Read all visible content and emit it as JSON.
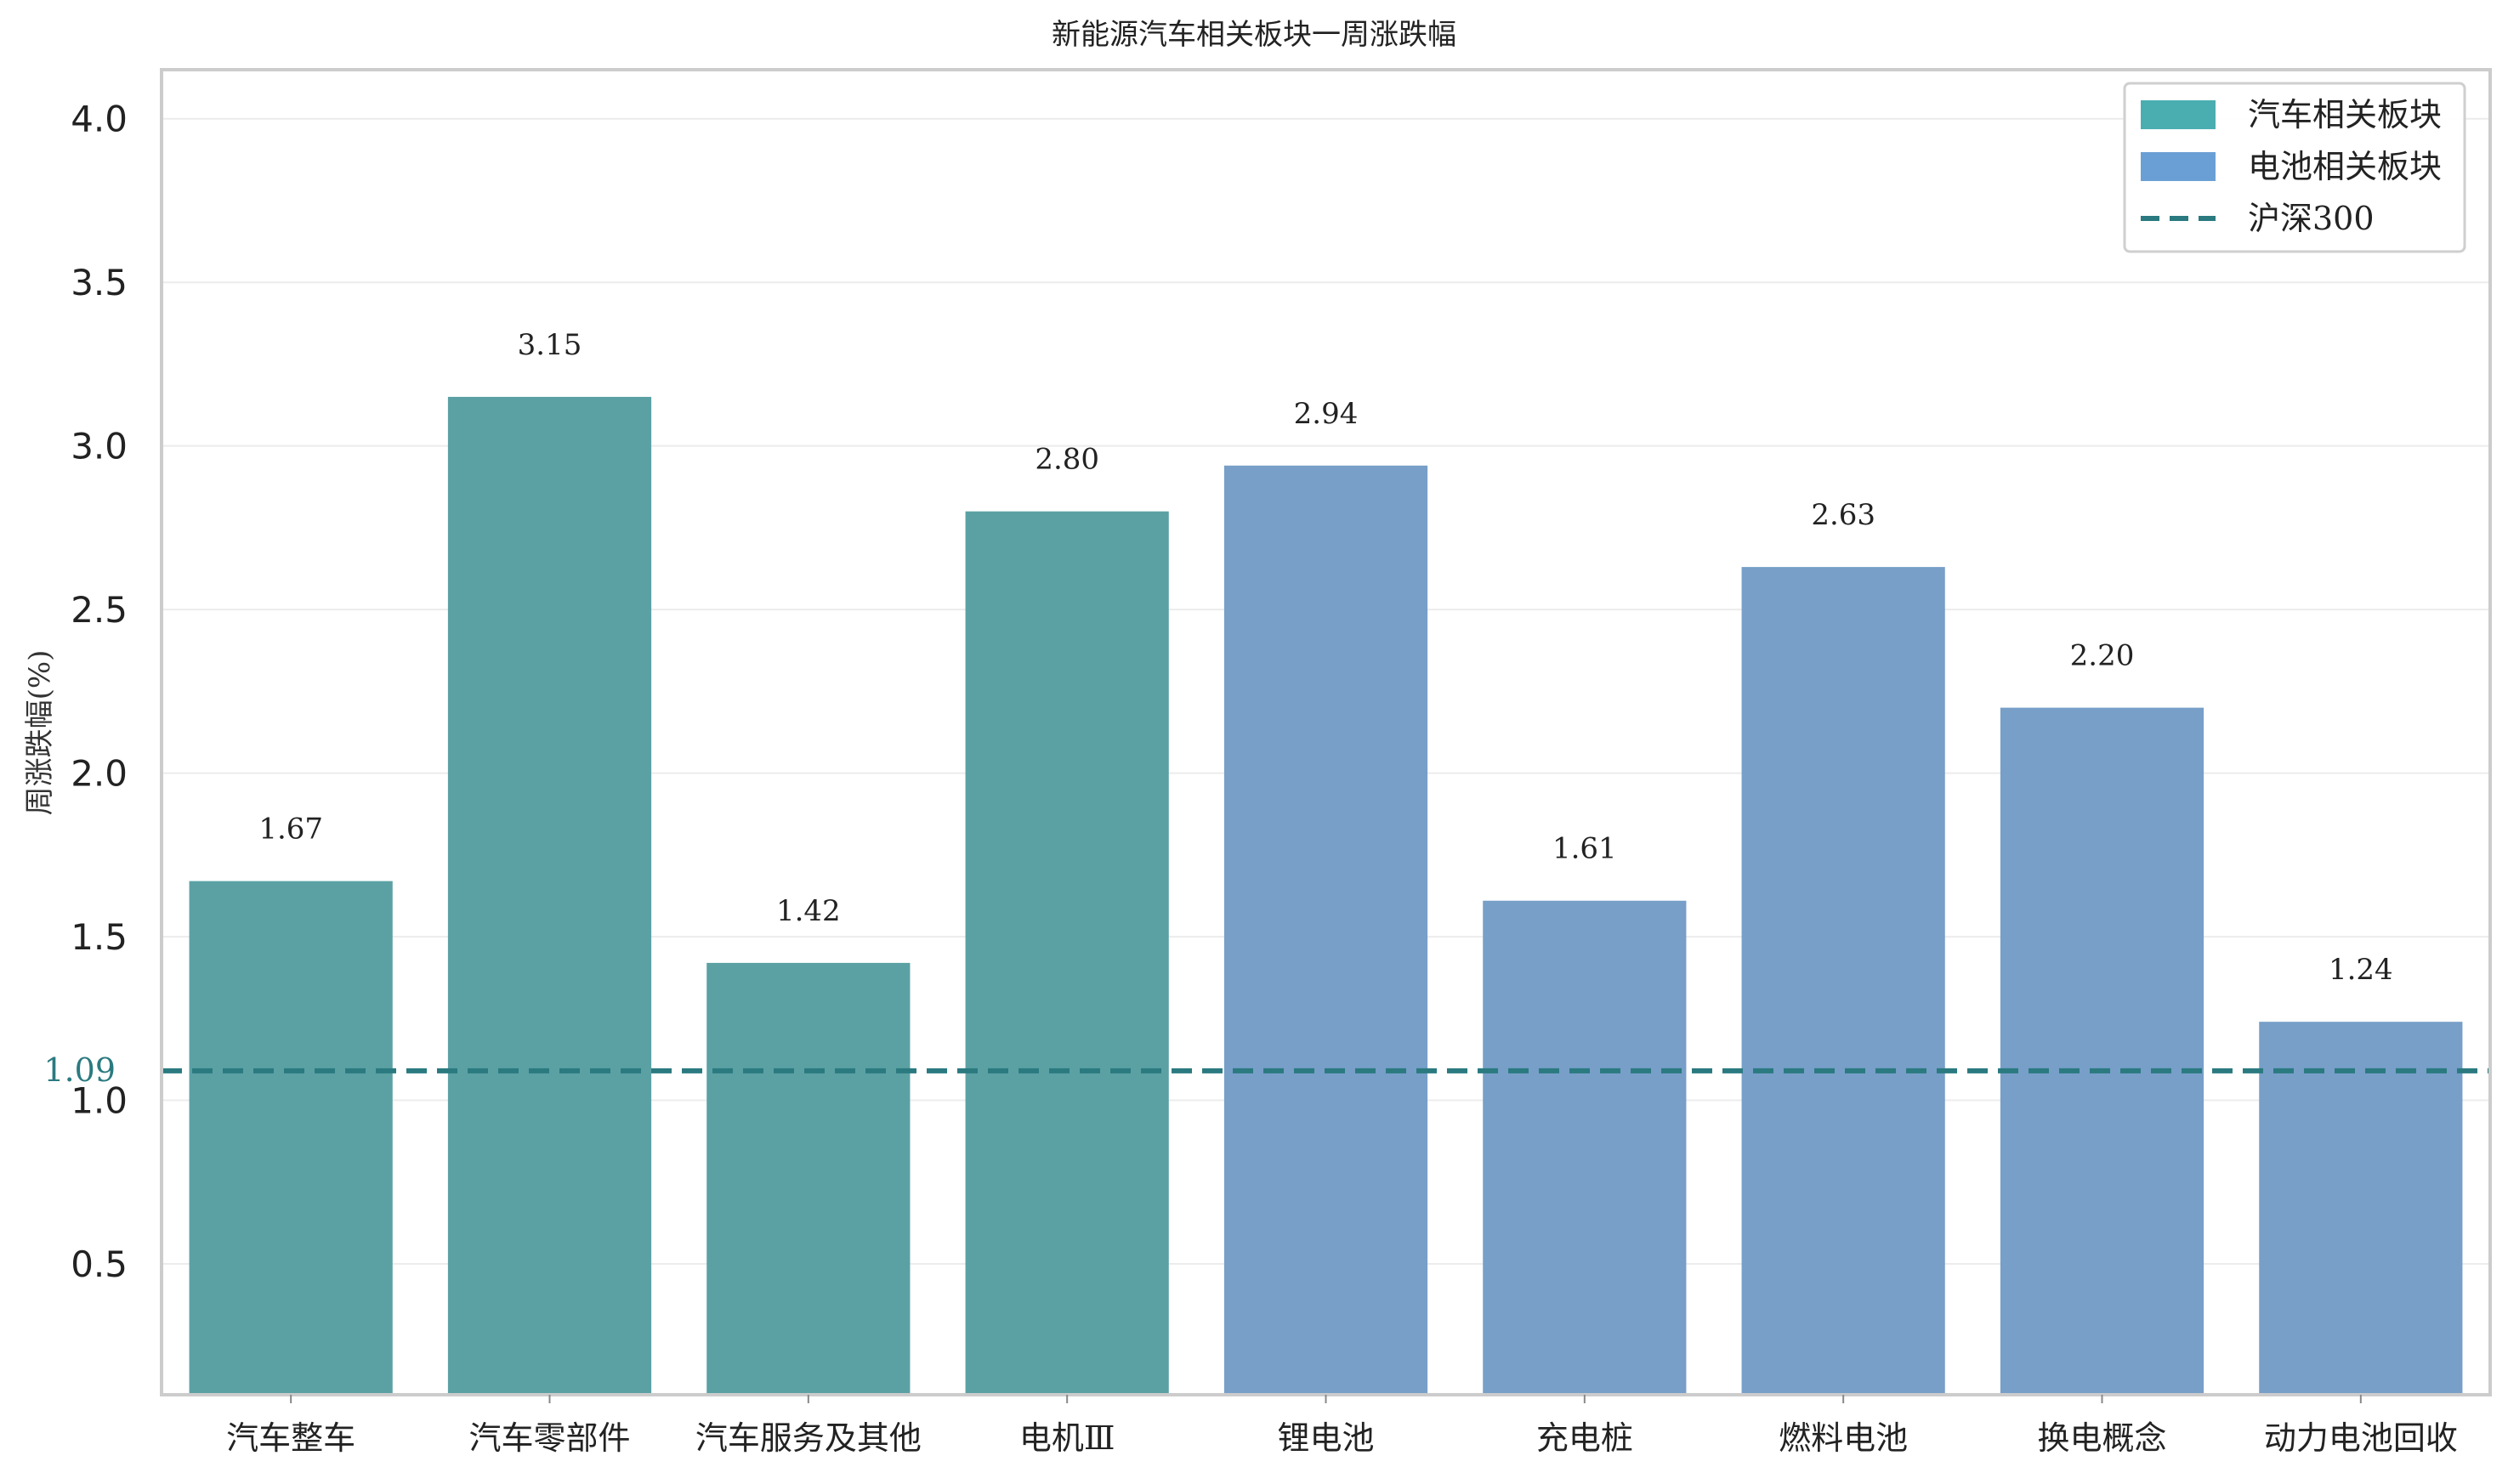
{
  "chart_data": {
    "type": "bar",
    "title": "新能源汽车相关板块一周涨跌幅",
    "xlabel": "",
    "ylabel": "周涨跌幅(%)",
    "ylim": [
      0.1,
      4.15
    ],
    "yticks": [
      0.5,
      1.0,
      1.5,
      2.0,
      2.5,
      3.0,
      3.5,
      4.0
    ],
    "grid": true,
    "legend_position": "top-right",
    "categories": [
      "汽车整车",
      "汽车零部件",
      "汽车服务及其他",
      "电机Ⅲ",
      "锂电池",
      "充电桩",
      "燃料电池",
      "换电概念",
      "动力电池回收"
    ],
    "values": [
      1.67,
      3.15,
      1.42,
      2.8,
      2.94,
      1.61,
      2.63,
      2.2,
      1.24
    ],
    "groups": [
      "汽车相关板块",
      "汽车相关板块",
      "汽车相关板块",
      "汽车相关板块",
      "电池相关板块",
      "电池相关板块",
      "电池相关板块",
      "电池相关板块",
      "电池相关板块"
    ],
    "value_labels": [
      "1.67",
      "3.15",
      "1.42",
      "2.80",
      "2.94",
      "1.61",
      "2.63",
      "2.20",
      "1.24"
    ],
    "legend": [
      {
        "label": "汽车相关板块",
        "kind": "bar",
        "color": "#4aaeb0"
      },
      {
        "label": "电池相关板块",
        "kind": "bar",
        "color": "#6a9fd5"
      },
      {
        "label": "沪深300",
        "kind": "dashed-line",
        "color": "#2a7a80"
      }
    ],
    "reference_line": {
      "name": "沪深300",
      "value": 1.09,
      "label": "1.09",
      "color": "#2a7a80"
    },
    "colors": {
      "汽车相关板块": "#5ba1a4",
      "电池相关板块": "#779fc8"
    }
  }
}
